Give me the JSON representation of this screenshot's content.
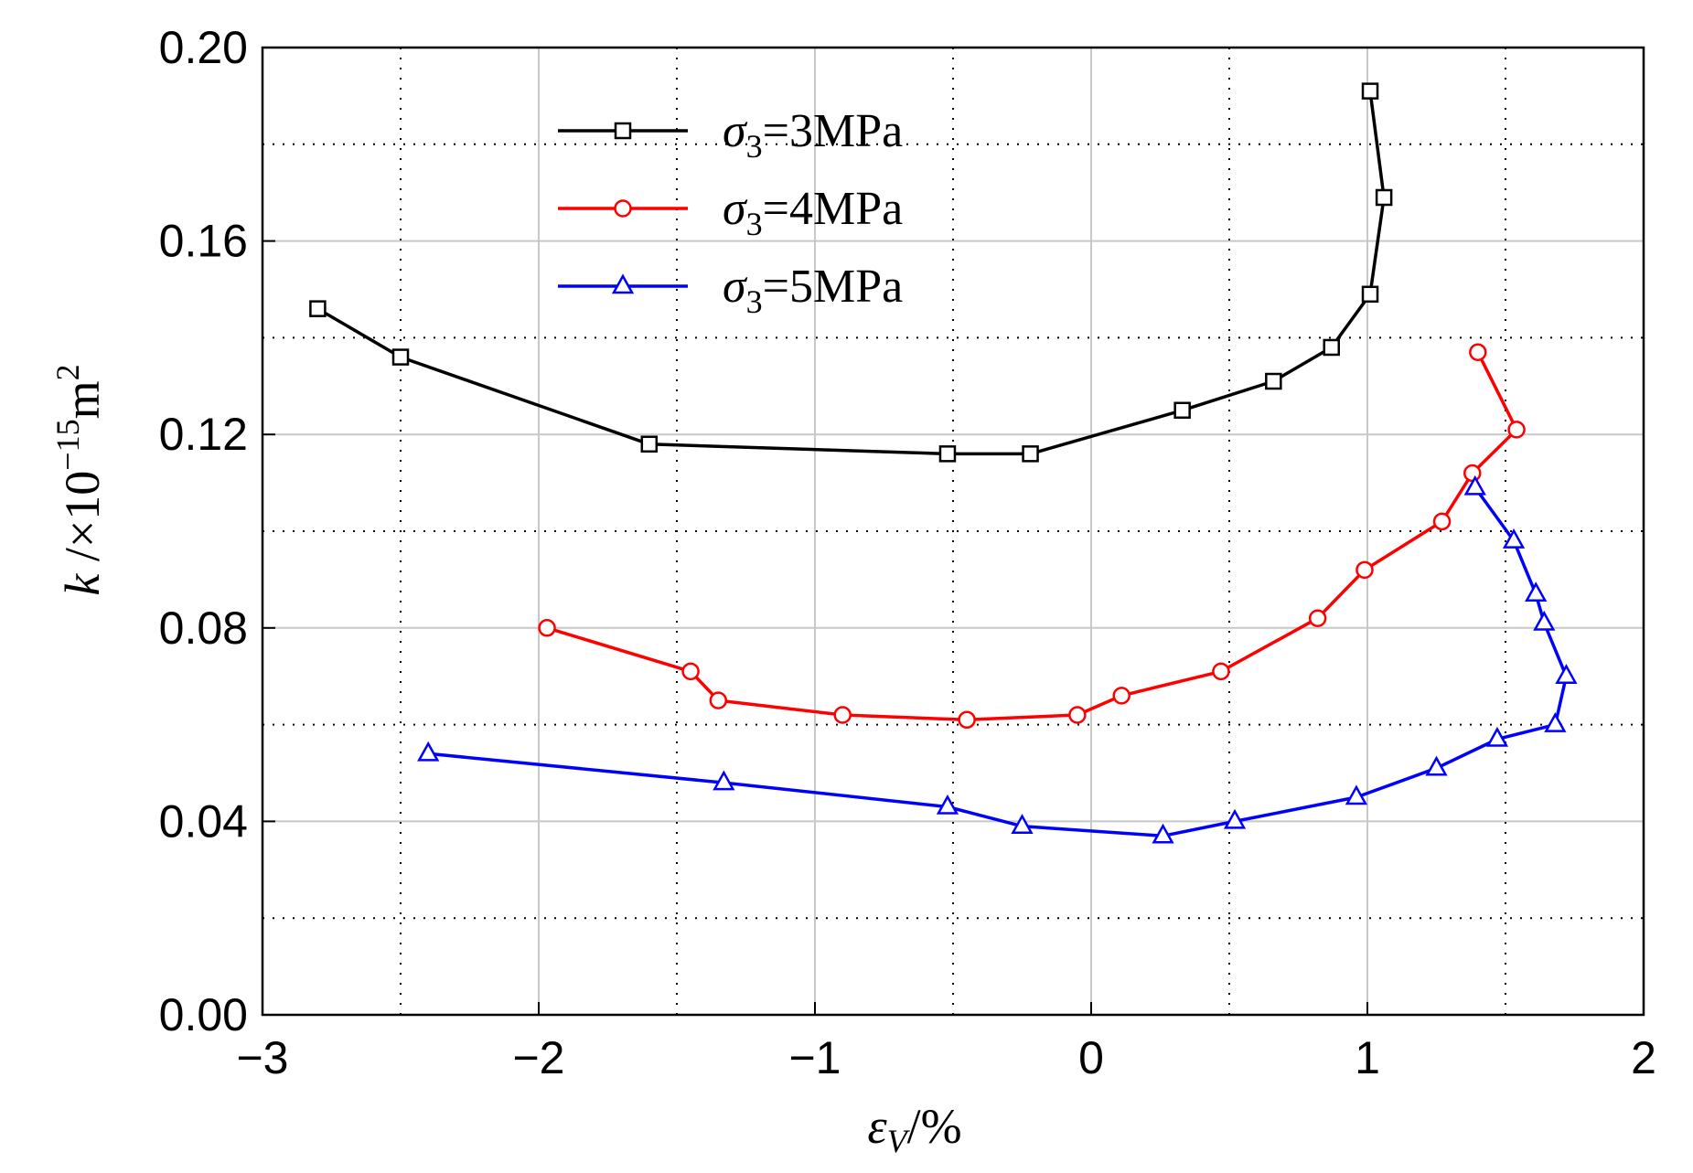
{
  "chart_data": {
    "type": "line",
    "title": "",
    "xlabel": {
      "main": "ε",
      "sub": "V",
      "unit": "/%"
    },
    "ylabel": {
      "main": "k",
      "unit": " /×10",
      "exp": "−15",
      "unit2": "m",
      "exp2": "2"
    },
    "xlim": [
      -3,
      2
    ],
    "ylim": [
      0,
      0.2
    ],
    "x_ticks": [
      -3,
      -2,
      -1,
      0,
      1,
      2
    ],
    "x_tick_labels": [
      "−3",
      "−2",
      "−1",
      "0",
      "1",
      "2"
    ],
    "y_ticks": [
      0,
      0.04,
      0.08,
      0.12,
      0.16,
      0.2
    ],
    "y_tick_labels": [
      "0.00",
      "0.04",
      "0.08",
      "0.12",
      "0.16",
      "0.20"
    ],
    "grid": true,
    "legend_position": "top-center",
    "series": [
      {
        "name": "σ3=3MPa",
        "legend": {
          "sym": "σ",
          "sub": "3",
          "rest": "=3MPa"
        },
        "color": "#000000",
        "marker": "square",
        "points": [
          [
            -2.8,
            0.146
          ],
          [
            -2.5,
            0.136
          ],
          [
            -1.6,
            0.118
          ],
          [
            -0.52,
            0.116
          ],
          [
            -0.22,
            0.116
          ],
          [
            0.33,
            0.125
          ],
          [
            0.66,
            0.131
          ],
          [
            0.87,
            0.138
          ],
          [
            1.01,
            0.149
          ],
          [
            1.06,
            0.169
          ],
          [
            1.01,
            0.191
          ]
        ]
      },
      {
        "name": "σ3=4MPa",
        "legend": {
          "sym": "σ",
          "sub": "3",
          "rest": "=4MPa"
        },
        "color": "#ff0000",
        "marker": "circle",
        "points": [
          [
            -1.97,
            0.08
          ],
          [
            -1.45,
            0.071
          ],
          [
            -1.35,
            0.065
          ],
          [
            -0.9,
            0.062
          ],
          [
            -0.45,
            0.061
          ],
          [
            -0.05,
            0.062
          ],
          [
            0.11,
            0.066
          ],
          [
            0.47,
            0.071
          ],
          [
            0.82,
            0.082
          ],
          [
            0.99,
            0.092
          ],
          [
            1.27,
            0.102
          ],
          [
            1.38,
            0.112
          ],
          [
            1.54,
            0.121
          ],
          [
            1.4,
            0.137
          ]
        ]
      },
      {
        "name": "σ3=5MPa",
        "legend": {
          "sym": "σ",
          "sub": "3",
          "rest": "=5MPa"
        },
        "color": "#0000ff",
        "marker": "triangle",
        "points": [
          [
            -2.4,
            0.054
          ],
          [
            -1.33,
            0.048
          ],
          [
            -0.52,
            0.043
          ],
          [
            -0.25,
            0.039
          ],
          [
            0.26,
            0.037
          ],
          [
            0.52,
            0.04
          ],
          [
            0.96,
            0.045
          ],
          [
            1.25,
            0.051
          ],
          [
            1.47,
            0.057
          ],
          [
            1.68,
            0.06
          ],
          [
            1.72,
            0.07
          ],
          [
            1.64,
            0.081
          ],
          [
            1.61,
            0.087
          ],
          [
            1.53,
            0.098
          ],
          [
            1.39,
            0.109
          ]
        ]
      }
    ]
  }
}
